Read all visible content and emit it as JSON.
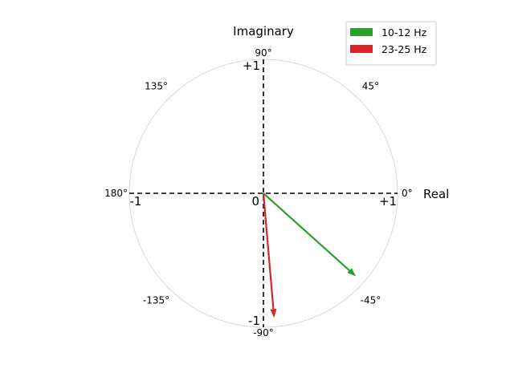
{
  "chart_data": {
    "type": "phasor",
    "xlabel": "Real",
    "ylabel": "Imaginary",
    "xlim": [
      -1,
      1
    ],
    "ylim": [
      -1,
      1
    ],
    "grid": false,
    "legend_position": "top-right",
    "axis_ticks": {
      "pos_x": "+1",
      "neg_x": "-1",
      "pos_y": "+1",
      "neg_y": "-1",
      "origin": "0"
    },
    "angle_labels": [
      {
        "angle": 0,
        "text": "0°"
      },
      {
        "angle": 45,
        "text": "45°"
      },
      {
        "angle": 90,
        "text": "90°"
      },
      {
        "angle": 135,
        "text": "135°"
      },
      {
        "angle": 180,
        "text": "180°"
      },
      {
        "angle": -135,
        "text": "-135°"
      },
      {
        "angle": -90,
        "text": "-90°"
      },
      {
        "angle": -45,
        "text": "-45°"
      }
    ],
    "series": [
      {
        "name": "10-12 Hz",
        "color": "#2ca02c",
        "real": 0.69,
        "imag": -0.62
      },
      {
        "name": "23-25 Hz",
        "color": "#d62728",
        "real": 0.08,
        "imag": -0.93
      }
    ]
  }
}
